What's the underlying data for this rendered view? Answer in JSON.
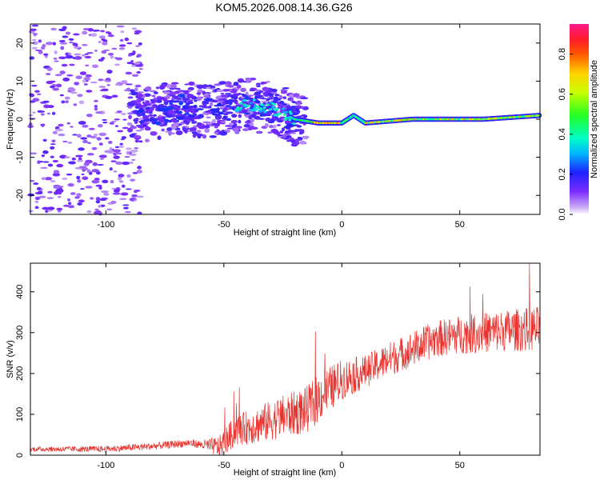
{
  "title": "KOM5.2026.008.14.36.G26",
  "chart_data": [
    {
      "type": "heatmap",
      "xlabel": "Height of straight line (km)",
      "ylabel": "Frequency (Hz)",
      "xlim": [
        -132,
        84
      ],
      "ylim": [
        -25,
        25
      ],
      "x_ticks": [
        -100,
        -50,
        0,
        50
      ],
      "y_ticks": [
        -20,
        -10,
        0,
        10,
        20
      ],
      "colorbar": {
        "label": "Normalized spectral amplitude",
        "range": [
          0.0,
          0.95
        ],
        "ticks": [
          0.0,
          0.2,
          0.4,
          0.6,
          0.8
        ]
      },
      "ridge": {
        "description_points": [
          {
            "x": -85,
            "y": 1
          },
          {
            "x": -70,
            "y": 3
          },
          {
            "x": -55,
            "y": 2
          },
          {
            "x": -40,
            "y": 4
          },
          {
            "x": -30,
            "y": 3
          },
          {
            "x": -20,
            "y": 0
          },
          {
            "x": -10,
            "y": -1
          },
          {
            "x": 0,
            "y": -1
          },
          {
            "x": 5,
            "y": 1
          },
          {
            "x": 10,
            "y": -1
          },
          {
            "x": 30,
            "y": 0
          },
          {
            "x": 60,
            "y": 0
          },
          {
            "x": 84,
            "y": 1
          }
        ]
      }
    },
    {
      "type": "line",
      "xlabel": "Height of straight line (km)",
      "ylabel": "SNR (v/v)",
      "xlim": [
        -132,
        84
      ],
      "ylim": [
        0,
        470
      ],
      "x_ticks": [
        -100,
        -50,
        0,
        50
      ],
      "y_ticks": [
        0,
        100,
        200,
        300,
        400
      ],
      "series": [
        {
          "color": "#e8322e",
          "trend": [
            {
              "x": -132,
              "y": 15
            },
            {
              "x": -100,
              "y": 15
            },
            {
              "x": -80,
              "y": 22
            },
            {
              "x": -65,
              "y": 30
            },
            {
              "x": -52,
              "y": 20
            },
            {
              "x": -45,
              "y": 60
            },
            {
              "x": -35,
              "y": 75
            },
            {
              "x": -25,
              "y": 95
            },
            {
              "x": -15,
              "y": 110
            },
            {
              "x": -8,
              "y": 150
            },
            {
              "x": 0,
              "y": 185
            },
            {
              "x": 10,
              "y": 205
            },
            {
              "x": 20,
              "y": 235
            },
            {
              "x": 30,
              "y": 260
            },
            {
              "x": 40,
              "y": 285
            },
            {
              "x": 50,
              "y": 295
            },
            {
              "x": 60,
              "y": 300
            },
            {
              "x": 70,
              "y": 305
            },
            {
              "x": 84,
              "y": 310
            }
          ],
          "noise": [
            {
              "x": -132,
              "y": 6
            },
            {
              "x": -60,
              "y": 10
            },
            {
              "x": -48,
              "y": 35
            },
            {
              "x": -30,
              "y": 50
            },
            {
              "x": -10,
              "y": 60
            },
            {
              "x": 10,
              "y": 40
            },
            {
              "x": 40,
              "y": 45
            },
            {
              "x": 84,
              "y": 55
            }
          ]
        }
      ]
    }
  ]
}
